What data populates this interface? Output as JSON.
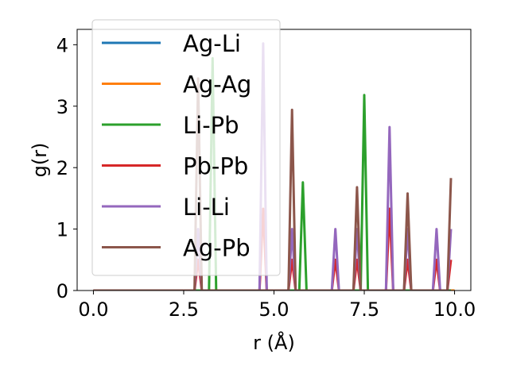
{
  "chart_data": {
    "type": "line",
    "xlabel": "r (Å)",
    "ylabel": "g(r)",
    "xlim": [
      -0.45,
      10.45
    ],
    "ylim": [
      0,
      4.25
    ],
    "xticks": [
      0.0,
      2.5,
      5.0,
      7.5,
      10.0
    ],
    "xtick_labels": [
      "0.0",
      "2.5",
      "5.0",
      "7.5",
      "10.0"
    ],
    "yticks": [
      0,
      1,
      2,
      3,
      4
    ],
    "ytick_labels": [
      "0",
      "1",
      "2",
      "3",
      "4"
    ],
    "grid": false,
    "legend_position": "upper-left",
    "series": [
      {
        "name": "Ag-Li",
        "color": "#1f77b4",
        "x": [
          0,
          10
        ],
        "y": [
          0,
          0
        ]
      },
      {
        "name": "Ag-Ag",
        "color": "#ff7f0e",
        "x": [
          0,
          10
        ],
        "y": [
          0,
          0
        ]
      },
      {
        "name": "Li-Pb",
        "color": "#2ca02c",
        "x": [
          0,
          3.2,
          3.3,
          3.4,
          5.7,
          5.8,
          5.9,
          7.4,
          7.5,
          7.6,
          9.9
        ],
        "y": [
          0,
          0,
          3.78,
          0,
          0,
          1.76,
          0,
          0,
          3.18,
          0,
          0
        ]
      },
      {
        "name": "Pb-Pb",
        "color": "#d62728",
        "x": [
          0,
          2.8,
          2.9,
          3.0,
          4.6,
          4.7,
          4.8,
          5.4,
          5.5,
          5.6,
          6.6,
          6.7,
          6.8,
          7.2,
          7.3,
          7.4,
          8.1,
          8.2,
          8.3,
          8.6,
          8.7,
          8.8,
          9.4,
          9.5,
          9.6,
          9.8,
          9.9
        ],
        "y": [
          0,
          0,
          0.5,
          0,
          0,
          1.33,
          0,
          0,
          0.5,
          0,
          0,
          0.5,
          0,
          0,
          0.5,
          0,
          0,
          1.33,
          0,
          0,
          0.5,
          0,
          0,
          0.5,
          0,
          0,
          0.5
        ]
      },
      {
        "name": "Li-Li",
        "color": "#9467bd",
        "x": [
          0,
          2.8,
          2.9,
          3.0,
          4.6,
          4.7,
          4.8,
          5.4,
          5.5,
          5.6,
          6.6,
          6.7,
          6.8,
          7.2,
          7.3,
          7.4,
          8.1,
          8.2,
          8.3,
          8.6,
          8.7,
          8.8,
          9.4,
          9.5,
          9.6,
          9.8,
          9.9
        ],
        "y": [
          0,
          0,
          1.0,
          0,
          0,
          4.02,
          0,
          0,
          1.0,
          0,
          0,
          1.0,
          0,
          0,
          1.0,
          0,
          0,
          2.66,
          0,
          0,
          1.0,
          0,
          0,
          1.0,
          0,
          0,
          1.0
        ]
      },
      {
        "name": "Ag-Pb",
        "color": "#8c564b",
        "x": [
          0,
          2.8,
          2.9,
          3.0,
          5.4,
          5.5,
          5.6,
          7.2,
          7.3,
          7.4,
          8.6,
          8.7,
          8.8,
          9.8,
          9.9
        ],
        "y": [
          0,
          0,
          3.45,
          0,
          0,
          2.94,
          0,
          0,
          1.68,
          0,
          0,
          1.58,
          0,
          0,
          1.83
        ]
      }
    ]
  }
}
